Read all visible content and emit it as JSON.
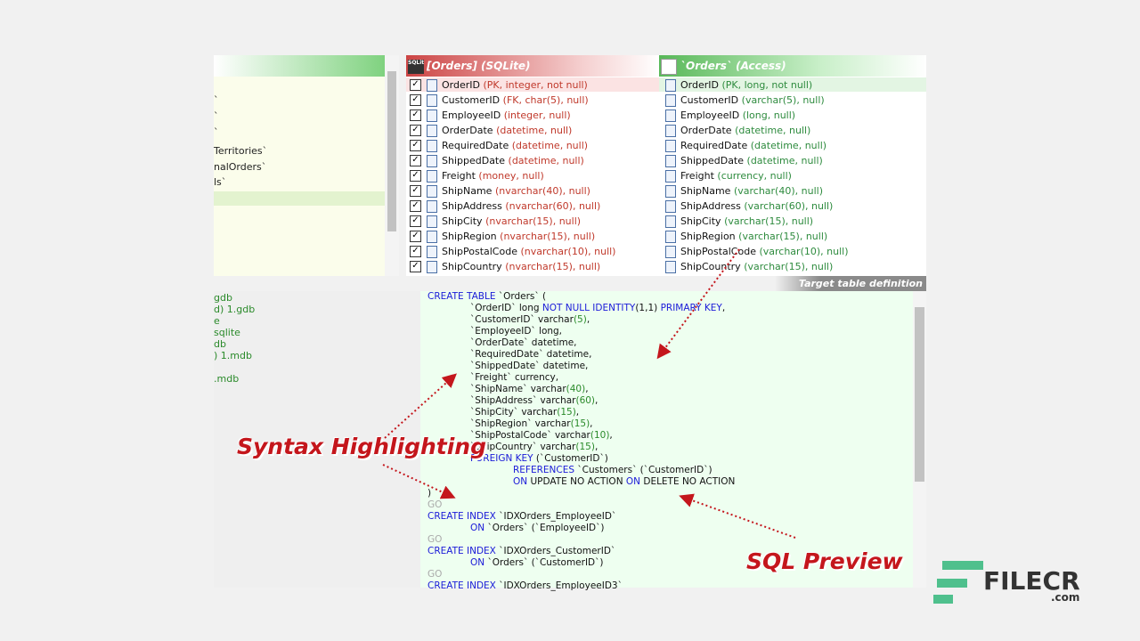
{
  "left_panel": {
    "items": [
      "`",
      "`",
      "`",
      "Territories`",
      "nalOrders`",
      "ls`"
    ]
  },
  "left_files": [
    "gdb",
    "d) 1.gdb",
    "e",
    "sqlite",
    "db",
    ") 1.mdb",
    ".mdb"
  ],
  "source": {
    "title": "[Orders]  (SQLite)",
    "icon": "SQLite",
    "fields": [
      {
        "name": "OrderID",
        "type": "(PK, integer, not null)"
      },
      {
        "name": "CustomerID",
        "type": "(FK, char(5), null)"
      },
      {
        "name": "EmployeeID",
        "type": "(integer, null)"
      },
      {
        "name": "OrderDate",
        "type": "(datetime, null)"
      },
      {
        "name": "RequiredDate",
        "type": "(datetime, null)"
      },
      {
        "name": "ShippedDate",
        "type": "(datetime, null)"
      },
      {
        "name": "Freight",
        "type": "(money, null)"
      },
      {
        "name": "ShipName",
        "type": "(nvarchar(40), null)"
      },
      {
        "name": "ShipAddress",
        "type": "(nvarchar(60), null)"
      },
      {
        "name": "ShipCity",
        "type": "(nvarchar(15), null)"
      },
      {
        "name": "ShipRegion",
        "type": "(nvarchar(15), null)"
      },
      {
        "name": "ShipPostalCode",
        "type": "(nvarchar(10), null)"
      },
      {
        "name": "ShipCountry",
        "type": "(nvarchar(15), null)"
      }
    ]
  },
  "target": {
    "title": "`Orders`  (Access)",
    "fields": [
      {
        "name": "OrderID",
        "type": "(PK, long, not null)"
      },
      {
        "name": "CustomerID",
        "type": "(varchar(5), null)"
      },
      {
        "name": "EmployeeID",
        "type": "(long, null)"
      },
      {
        "name": "OrderDate",
        "type": "(datetime, null)"
      },
      {
        "name": "RequiredDate",
        "type": "(datetime, null)"
      },
      {
        "name": "ShippedDate",
        "type": "(datetime, null)"
      },
      {
        "name": "Freight",
        "type": "(currency, null)"
      },
      {
        "name": "ShipName",
        "type": "(varchar(40), null)"
      },
      {
        "name": "ShipAddress",
        "type": "(varchar(60), null)"
      },
      {
        "name": "ShipCity",
        "type": "(varchar(15), null)"
      },
      {
        "name": "ShipRegion",
        "type": "(varchar(15), null)"
      },
      {
        "name": "ShipPostalCode",
        "type": "(varchar(10), null)"
      },
      {
        "name": "ShipCountry",
        "type": "(varchar(15), null)"
      }
    ]
  },
  "preview_label": "Target table definition",
  "sql": [
    {
      "indent": 0,
      "tokens": [
        {
          "kind": "k",
          "text": "CREATE TABLE"
        },
        {
          "kind": "t",
          "text": " `Orders` ("
        }
      ]
    },
    {
      "indent": 1,
      "tokens": [
        {
          "kind": "t",
          "text": "`OrderID` long "
        },
        {
          "kind": "k",
          "text": "NOT NULL IDENTITY"
        },
        {
          "kind": "t",
          "text": "(1,1) "
        },
        {
          "kind": "k",
          "text": "PRIMARY KEY"
        },
        {
          "kind": "t",
          "text": ","
        }
      ]
    },
    {
      "indent": 1,
      "tokens": [
        {
          "kind": "t",
          "text": "`CustomerID` varchar"
        },
        {
          "kind": "n",
          "text": "(5)"
        },
        {
          "kind": "t",
          "text": ","
        }
      ]
    },
    {
      "indent": 1,
      "tokens": [
        {
          "kind": "t",
          "text": "`EmployeeID` long,"
        }
      ]
    },
    {
      "indent": 1,
      "tokens": [
        {
          "kind": "t",
          "text": "`OrderDate` datetime,"
        }
      ]
    },
    {
      "indent": 1,
      "tokens": [
        {
          "kind": "t",
          "text": "`RequiredDate` datetime,"
        }
      ]
    },
    {
      "indent": 1,
      "tokens": [
        {
          "kind": "t",
          "text": "`ShippedDate` datetime,"
        }
      ]
    },
    {
      "indent": 1,
      "tokens": [
        {
          "kind": "t",
          "text": "`Freight` currency,"
        }
      ]
    },
    {
      "indent": 1,
      "tokens": [
        {
          "kind": "t",
          "text": "`ShipName` varchar"
        },
        {
          "kind": "n",
          "text": "(40)"
        },
        {
          "kind": "t",
          "text": ","
        }
      ]
    },
    {
      "indent": 1,
      "tokens": [
        {
          "kind": "t",
          "text": "`ShipAddress` varchar"
        },
        {
          "kind": "n",
          "text": "(60)"
        },
        {
          "kind": "t",
          "text": ","
        }
      ]
    },
    {
      "indent": 1,
      "tokens": [
        {
          "kind": "t",
          "text": "`ShipCity` varchar"
        },
        {
          "kind": "n",
          "text": "(15)"
        },
        {
          "kind": "t",
          "text": ","
        }
      ]
    },
    {
      "indent": 1,
      "tokens": [
        {
          "kind": "t",
          "text": "`ShipRegion` varchar"
        },
        {
          "kind": "n",
          "text": "(15)"
        },
        {
          "kind": "t",
          "text": ","
        }
      ]
    },
    {
      "indent": 1,
      "tokens": [
        {
          "kind": "t",
          "text": "`ShipPostalCode` varchar"
        },
        {
          "kind": "n",
          "text": "(10)"
        },
        {
          "kind": "t",
          "text": ","
        }
      ]
    },
    {
      "indent": 1,
      "tokens": [
        {
          "kind": "t",
          "text": "`ShipCountry` varchar"
        },
        {
          "kind": "n",
          "text": "(15)"
        },
        {
          "kind": "t",
          "text": ","
        }
      ]
    },
    {
      "indent": 1,
      "tokens": [
        {
          "kind": "k",
          "text": "FOREIGN KEY"
        },
        {
          "kind": "t",
          "text": " (`CustomerID`)"
        }
      ]
    },
    {
      "indent": 2,
      "tokens": [
        {
          "kind": "k",
          "text": "REFERENCES"
        },
        {
          "kind": "t",
          "text": " `Customers` (`CustomerID`)"
        }
      ]
    },
    {
      "indent": 2,
      "tokens": [
        {
          "kind": "k",
          "text": "ON"
        },
        {
          "kind": "t",
          "text": " UPDATE NO ACTION "
        },
        {
          "kind": "k",
          "text": "ON"
        },
        {
          "kind": "t",
          "text": " DELETE NO ACTION"
        }
      ]
    },
    {
      "indent": 0,
      "tokens": [
        {
          "kind": "t",
          "text": ")"
        }
      ]
    },
    {
      "indent": 0,
      "tokens": [
        {
          "kind": "g",
          "text": "GO"
        }
      ]
    },
    {
      "indent": 0,
      "tokens": [
        {
          "kind": "k",
          "text": "CREATE INDEX"
        },
        {
          "kind": "t",
          "text": " `IDXOrders_EmployeeID`"
        }
      ]
    },
    {
      "indent": 1,
      "tokens": [
        {
          "kind": "k",
          "text": "ON"
        },
        {
          "kind": "t",
          "text": " `Orders` (`EmployeeID`)"
        }
      ]
    },
    {
      "indent": 0,
      "tokens": [
        {
          "kind": "g",
          "text": "GO"
        }
      ]
    },
    {
      "indent": 0,
      "tokens": [
        {
          "kind": "k",
          "text": "CREATE INDEX"
        },
        {
          "kind": "t",
          "text": " `IDXOrders_CustomerID`"
        }
      ]
    },
    {
      "indent": 1,
      "tokens": [
        {
          "kind": "k",
          "text": "ON"
        },
        {
          "kind": "t",
          "text": " `Orders` (`CustomerID`)"
        }
      ]
    },
    {
      "indent": 0,
      "tokens": [
        {
          "kind": "g",
          "text": "GO"
        }
      ]
    },
    {
      "indent": 0,
      "tokens": [
        {
          "kind": "k",
          "text": "CREATE INDEX"
        },
        {
          "kind": "t",
          "text": " `IDXOrders_EmployeeID3`"
        }
      ]
    }
  ],
  "annotations": {
    "syntax": "Syntax Highlighting",
    "preview": "SQL Preview"
  },
  "watermark": {
    "brand": "FILECR",
    "suffix": ".com"
  }
}
